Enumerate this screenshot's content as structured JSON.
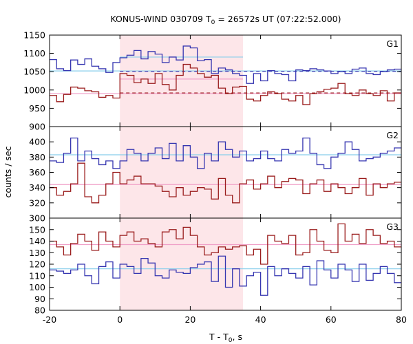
{
  "chart_data": {
    "type": "line",
    "title_main": "KONUS-WIND 030709 T",
    "title_sub": "0",
    "title_rest": " = 26572s UT (07:22:52.000)",
    "xlabel_main": "T - T",
    "xlabel_sub": "0",
    "xlabel_rest": ", s",
    "ylabel": "counts / sec",
    "xlim": [
      -20,
      80
    ],
    "x_ticks": [
      -20,
      0,
      20,
      40,
      60,
      80
    ],
    "shaded_interval": [
      0,
      35
    ],
    "colors": {
      "blue": "#3535b0",
      "red": "#9a1c1c",
      "blue_bg": "#87ceeb",
      "red_bg": "#f0a0c8",
      "shade": "#fde6e9"
    },
    "bin_edges_start": -20,
    "bin_width": 2,
    "panels": [
      {
        "label": "G1",
        "ylim": [
          900,
          1150
        ],
        "y_ticks": [
          900,
          950,
          1000,
          1050,
          1100,
          1150
        ],
        "series": [
          {
            "color": "blue",
            "values": [
              1083,
              1058,
              1053,
              1082,
              1070,
              1085,
              1065,
              1058,
              1048,
              1075,
              1088,
              1095,
              1108,
              1085,
              1105,
              1098,
              1075,
              1090,
              1082,
              1120,
              1115,
              1080,
              1083,
              1045,
              1060,
              1055,
              1045,
              1040,
              1018,
              1045,
              1025,
              1053,
              1045,
              1042,
              1025,
              1055,
              1053,
              1058,
              1055,
              1052,
              1045,
              1050,
              1045,
              1057,
              1060,
              1045,
              1042,
              1050,
              1055,
              1057
            ]
          },
          {
            "color": "red",
            "values": [
              985,
              968,
              988,
              1008,
              1005,
              998,
              995,
              980,
              985,
              978,
              1045,
              1040,
              1020,
              1030,
              1018,
              1045,
              1015,
              1000,
              1040,
              1070,
              1060,
              1045,
              1035,
              1040,
              1005,
              990,
              1008,
              1010,
              975,
              970,
              985,
              995,
              990,
              975,
              970,
              985,
              960,
              990,
              995,
              1002,
              1005,
              1018,
              990,
              985,
              1000,
              990,
              985,
              998,
              970,
              992
            ]
          }
        ],
        "background_levels": [
          {
            "color": "blue_bg",
            "value": 1052,
            "style": "solid",
            "x_range": [
              -20,
              80
            ]
          },
          {
            "color": "blue_bg",
            "value": 1090,
            "style": "solid",
            "x_range": [
              0,
              35
            ]
          },
          {
            "color": "red_bg",
            "value": 990,
            "style": "solid",
            "x_range": [
              -20,
              80
            ]
          },
          {
            "color": "red_bg",
            "value": 1030,
            "style": "solid",
            "x_range": [
              0,
              35
            ]
          },
          {
            "color": "blue",
            "value": 1051,
            "style": "dashed",
            "x_range": [
              0,
              80
            ]
          },
          {
            "color": "red",
            "value": 992,
            "style": "dashed",
            "x_range": [
              0,
              80
            ]
          }
        ]
      },
      {
        "label": "G2",
        "ylim": [
          300,
          420
        ],
        "y_ticks": [
          300,
          320,
          340,
          360,
          380,
          400
        ],
        "series": [
          {
            "color": "blue",
            "values": [
              375,
              373,
              385,
              405,
              375,
              388,
              378,
              370,
              375,
              365,
              375,
              390,
              385,
              375,
              385,
              392,
              378,
              398,
              375,
              395,
              380,
              365,
              385,
              375,
              400,
              390,
              380,
              388,
              375,
              378,
              388,
              378,
              375,
              390,
              385,
              388,
              405,
              385,
              370,
              365,
              380,
              385,
              400,
              390,
              375,
              378,
              380,
              385,
              388,
              392
            ]
          },
          {
            "color": "red",
            "values": [
              340,
              330,
              335,
              345,
              372,
              328,
              320,
              330,
              345,
              360,
              345,
              350,
              355,
              345,
              345,
              342,
              335,
              328,
              340,
              330,
              335,
              340,
              338,
              325,
              352,
              330,
              320,
              345,
              350,
              338,
              345,
              355,
              340,
              348,
              352,
              350,
              332,
              345,
              350,
              335,
              345,
              340,
              332,
              340,
              352,
              330,
              345,
              340,
              345,
              347
            ]
          }
        ],
        "background_levels": [
          {
            "color": "blue_bg",
            "value": 383,
            "style": "solid",
            "x_range": [
              -20,
              80
            ]
          },
          {
            "color": "red_bg",
            "value": 344,
            "style": "solid",
            "x_range": [
              -20,
              80
            ]
          }
        ]
      },
      {
        "label": "G3",
        "ylim": [
          80,
          160
        ],
        "y_ticks": [
          80,
          90,
          100,
          110,
          120,
          130,
          140,
          150
        ],
        "series": [
          {
            "color": "blue",
            "values": [
              115,
              114,
              112,
              115,
              120,
              110,
              103,
              118,
              122,
              108,
              120,
              118,
              112,
              125,
              121,
              110,
              108,
              115,
              113,
              112,
              117,
              120,
              122,
              105,
              127,
              100,
              116,
              101,
              110,
              113,
              93,
              118,
              110,
              116,
              112,
              108,
              118,
              102,
              123,
              115,
              108,
              120,
              115,
              105,
              120,
              106,
              112,
              118,
              112,
              104
            ]
          },
          {
            "color": "red",
            "values": [
              140,
              135,
              128,
              138,
              146,
              140,
              132,
              148,
              140,
              135,
              145,
              148,
              140,
              142,
              138,
              135,
              148,
              150,
              142,
              152,
              145,
              135,
              128,
              130,
              135,
              133,
              135,
              136,
              128,
              133,
              120,
              145,
              140,
              138,
              145,
              128,
              130,
              150,
              140,
              132,
              130,
              155,
              140,
              146,
              138,
              150,
              145,
              138,
              140,
              135
            ]
          }
        ],
        "background_levels": [
          {
            "color": "blue_bg",
            "value": 116,
            "style": "solid",
            "x_range": [
              -20,
              80
            ]
          },
          {
            "color": "red_bg",
            "value": 137,
            "style": "solid",
            "x_range": [
              -20,
              80
            ]
          }
        ]
      }
    ]
  }
}
